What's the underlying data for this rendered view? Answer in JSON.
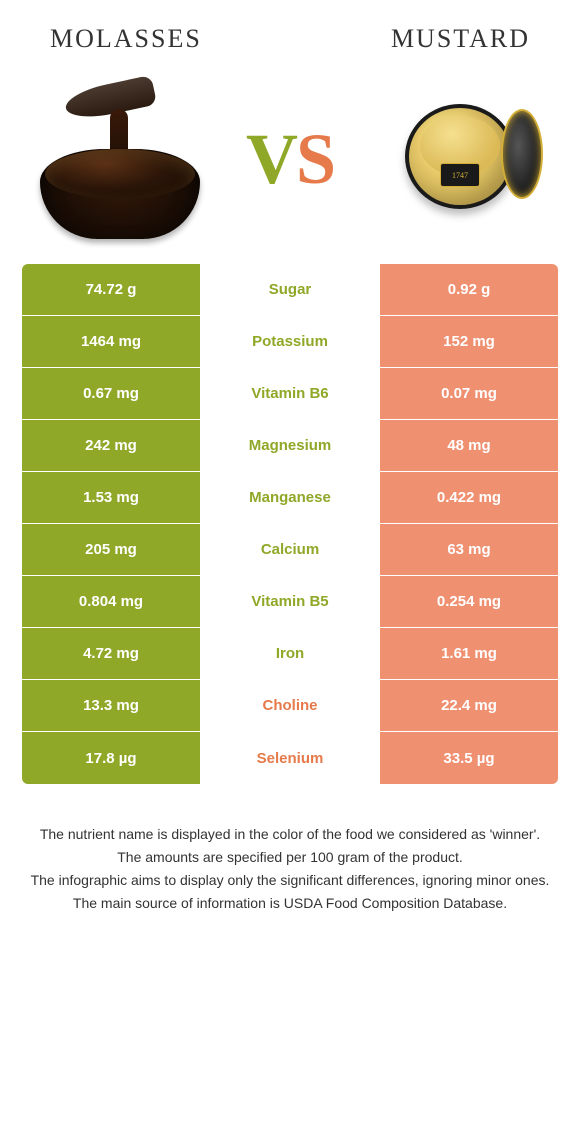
{
  "header": {
    "left_title": "molasses",
    "right_title": "mustard",
    "vs_v": "V",
    "vs_s": "S",
    "jar_year": "1747"
  },
  "colors": {
    "green_bg": "#8fa828",
    "green_fg": "#ffffff",
    "orange_bg": "#ef9071",
    "orange_fg": "#ffffff",
    "nutrient_green": "#8fa828",
    "nutrient_orange": "#e67a4a"
  },
  "rows": [
    {
      "nutrient": "Sugar",
      "left": "74.72 g",
      "right": "0.92 g",
      "winner": "left"
    },
    {
      "nutrient": "Potassium",
      "left": "1464 mg",
      "right": "152 mg",
      "winner": "left"
    },
    {
      "nutrient": "Vitamin B6",
      "left": "0.67 mg",
      "right": "0.07 mg",
      "winner": "left"
    },
    {
      "nutrient": "Magnesium",
      "left": "242 mg",
      "right": "48 mg",
      "winner": "left"
    },
    {
      "nutrient": "Manganese",
      "left": "1.53 mg",
      "right": "0.422 mg",
      "winner": "left"
    },
    {
      "nutrient": "Calcium",
      "left": "205 mg",
      "right": "63 mg",
      "winner": "left"
    },
    {
      "nutrient": "Vitamin B5",
      "left": "0.804 mg",
      "right": "0.254 mg",
      "winner": "left"
    },
    {
      "nutrient": "Iron",
      "left": "4.72 mg",
      "right": "1.61 mg",
      "winner": "left"
    },
    {
      "nutrient": "Choline",
      "left": "13.3 mg",
      "right": "22.4 mg",
      "winner": "right"
    },
    {
      "nutrient": "Selenium",
      "left": "17.8 µg",
      "right": "33.5 µg",
      "winner": "right"
    }
  ],
  "footer": {
    "line1": "The nutrient name is displayed in the color of the food we considered as 'winner'.",
    "line2": "The amounts are specified per 100 gram of the product.",
    "line3": "The infographic aims to display only the significant differences, ignoring minor ones.",
    "line4": "The main source of information is USDA Food Composition Database."
  }
}
